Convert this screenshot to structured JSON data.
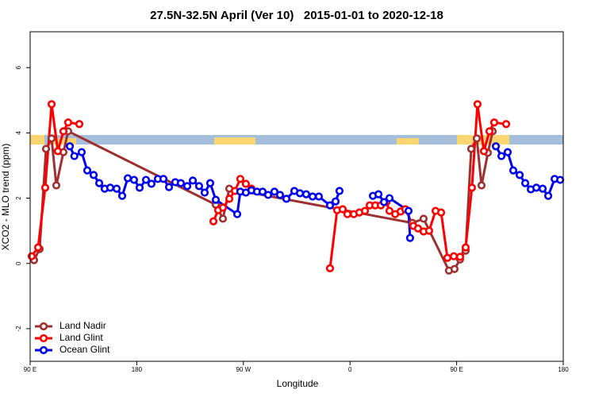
{
  "chart_data": {
    "type": "line",
    "title": "27.5N-32.5N April (Ver 10)   2015-01-01 to 2020-12-18",
    "x_label": "Longitude",
    "y_label": "XCO2 - MLO trend (ppm)",
    "xlim": [
      90,
      540
    ],
    "xticks": [
      {
        "value": 90,
        "label": "90 E"
      },
      180,
      {
        "value": 270,
        "label": "90 W"
      },
      {
        "value": 360,
        "label": "0"
      },
      {
        "value": 450,
        "label": "90 E"
      },
      {
        "value": 540,
        "label": "180"
      }
    ],
    "ylim": [
      -3,
      7.1
    ],
    "yticks": [
      -2,
      0,
      2,
      4,
      6
    ],
    "legend": "bottom-left",
    "series": [
      {
        "name": "Land Nadir",
        "color": "#a03030",
        "x": [
          93.3,
          98.0,
          103.4,
          108.1,
          112.1,
          118.1,
          122.1,
          246.7,
          252.7,
          258.1,
          412.7,
          422.1,
          443.5,
          448.2,
          452.9,
          457.6,
          462.3,
          467.0,
          471.0,
          476.4,
          480.4
        ],
        "values": [
          0.1,
          0.44,
          3.51,
          3.83,
          2.39,
          3.41,
          4.05,
          1.8,
          1.37,
          2.29,
          1.24,
          1.37,
          -0.22,
          -0.17,
          0.12,
          0.39,
          3.51,
          3.83,
          2.39,
          3.39,
          4.05
        ]
      },
      {
        "name": "Land Glint",
        "color": "#ff0000",
        "x": [
          91.3,
          96.7,
          102.7,
          108.1,
          113.4,
          118.1,
          122.1,
          131.5,
          200.0,
          244.7,
          248.7,
          252.7,
          258.1,
          262.8,
          267.4,
          272.1,
          276.8,
          310.0,
          343.1,
          349.1,
          353.8,
          357.8,
          363.2,
          367.9,
          372.6,
          376.6,
          381.3,
          386.0,
          390.7,
          393.3,
          398.1,
          402.7,
          406.7,
          413.4,
          417.4,
          422.1,
          426.8,
          432.2,
          436.9,
          442.2,
          447.6,
          452.9,
          457.6,
          462.9,
          467.6,
          473.0,
          477.7,
          481.7,
          491.8
        ],
        "values": [
          0.22,
          0.49,
          2.32,
          4.88,
          3.44,
          4.05,
          4.32,
          4.27,
          null,
          1.29,
          1.63,
          1.71,
          1.98,
          2.22,
          2.59,
          2.44,
          2.29,
          null,
          -0.15,
          1.63,
          1.66,
          1.51,
          1.51,
          1.56,
          1.61,
          1.78,
          1.78,
          1.78,
          1.88,
          1.61,
          1.51,
          1.59,
          1.66,
          1.15,
          1.07,
          0.98,
          1.0,
          1.61,
          1.56,
          0.17,
          0.22,
          0.2,
          0.49,
          2.32,
          4.88,
          3.44,
          4.05,
          4.32,
          4.27
        ]
      },
      {
        "name": "Ocean Glint",
        "color": "#0000ee",
        "x": [
          123.5,
          127.3,
          133.5,
          138.2,
          143.6,
          148.3,
          152.9,
          157.6,
          163.0,
          167.7,
          172.4,
          177.7,
          182.4,
          187.8,
          192.4,
          197.8,
          202.5,
          207.2,
          212.5,
          217.2,
          222.6,
          227.3,
          232.6,
          237.3,
          242.0,
          246.7,
          264.8,
          267.4,
          272.1,
          276.8,
          281.5,
          286.2,
          290.9,
          296.2,
          300.9,
          306.3,
          313.0,
          317.7,
          323.0,
          328.4,
          333.7,
          343.1,
          347.8,
          351.1,
          365.0,
          379.3,
          384.0,
          388.7,
          393.3,
          409.4,
          410.7,
          450.0,
          483.1,
          487.8,
          493.1,
          497.8,
          503.2,
          507.9,
          512.6,
          517.3,
          522.6,
          527.3,
          532.7,
          537.4
        ],
        "values": [
          3.59,
          3.29,
          3.41,
          2.85,
          2.71,
          2.46,
          2.29,
          2.32,
          2.29,
          2.07,
          2.61,
          2.56,
          2.32,
          2.56,
          2.44,
          2.59,
          2.59,
          2.34,
          2.49,
          2.46,
          2.37,
          2.54,
          2.37,
          2.17,
          2.46,
          1.95,
          1.51,
          2.2,
          2.17,
          2.24,
          2.2,
          2.2,
          2.1,
          2.2,
          2.1,
          1.98,
          2.22,
          2.15,
          2.12,
          2.05,
          2.05,
          1.78,
          1.9,
          2.22,
          null,
          2.07,
          2.12,
          1.88,
          2.0,
          1.61,
          0.78,
          null,
          3.59,
          3.29,
          3.41,
          2.85,
          2.71,
          2.46,
          2.27,
          2.32,
          2.29,
          2.07,
          2.59,
          2.56
        ]
      }
    ]
  }
}
